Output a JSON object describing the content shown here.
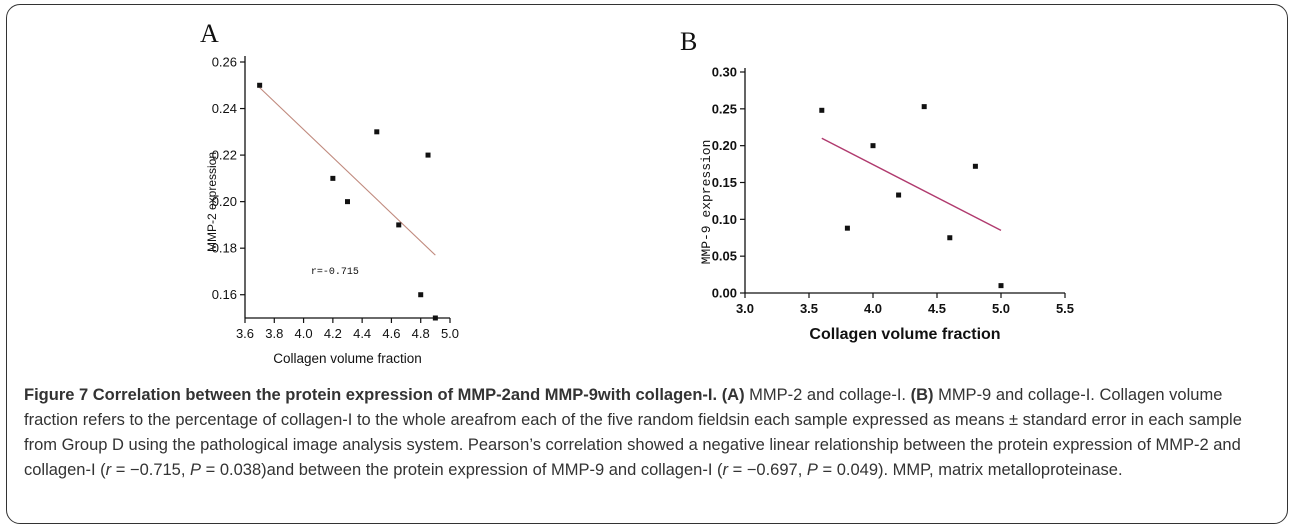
{
  "chart_data": [
    {
      "type": "scatter",
      "panel_label": "A",
      "xlabel": "Collagen volume fraction",
      "ylabel": "MMP-2 expression",
      "xlim": [
        3.6,
        5.0
      ],
      "ylim": [
        0.15,
        0.26
      ],
      "xticks": [
        "3.6",
        "3.8",
        "4.0",
        "4.2",
        "4.4",
        "4.6",
        "4.8",
        "5.0"
      ],
      "yticks": [
        "0.16",
        "0.18",
        "0.20",
        "0.22",
        "0.24",
        "0.26"
      ],
      "points": [
        {
          "x": 3.7,
          "y": 0.25
        },
        {
          "x": 4.2,
          "y": 0.21
        },
        {
          "x": 4.3,
          "y": 0.2
        },
        {
          "x": 4.5,
          "y": 0.23
        },
        {
          "x": 4.65,
          "y": 0.19
        },
        {
          "x": 4.8,
          "y": 0.16
        },
        {
          "x": 4.85,
          "y": 0.22
        },
        {
          "x": 4.9,
          "y": 0.15
        }
      ],
      "fit_line": {
        "x": [
          3.7,
          4.9
        ],
        "y": [
          0.249,
          0.177
        ],
        "color": "#c08a7e"
      },
      "annotation": "r=-0.715",
      "grid": false
    },
    {
      "type": "scatter",
      "panel_label": "B",
      "xlabel": "Collagen volume fraction",
      "ylabel": "MMP-9 expression",
      "xlim": [
        3.0,
        5.5
      ],
      "ylim": [
        0.0,
        0.3
      ],
      "xticks": [
        "3.0",
        "3.5",
        "4.0",
        "4.5",
        "5.0",
        "5.5"
      ],
      "yticks": [
        "0.00",
        "0.05",
        "0.10",
        "0.15",
        "0.20",
        "0.25",
        "0.30"
      ],
      "points": [
        {
          "x": 3.6,
          "y": 0.248
        },
        {
          "x": 3.8,
          "y": 0.088
        },
        {
          "x": 4.0,
          "y": 0.2
        },
        {
          "x": 4.2,
          "y": 0.133
        },
        {
          "x": 4.4,
          "y": 0.253
        },
        {
          "x": 4.6,
          "y": 0.075
        },
        {
          "x": 4.8,
          "y": 0.172
        },
        {
          "x": 5.0,
          "y": 0.01
        }
      ],
      "fit_line": {
        "x": [
          3.6,
          5.0
        ],
        "y": [
          0.21,
          0.085
        ],
        "color": "#b03a6e"
      },
      "grid": false
    }
  ],
  "caption": {
    "title": "Figure 7 Correlation between the protein expression of MMP-2and MMP-9with collagen-I.",
    "label_a": "(A)",
    "text_a": " MMP-2 and collage-I. ",
    "label_b": "(B)",
    "text_b": " MMP-9 and collage-I. Collagen volume fraction refers to the percentage of collagen-I to the whole areafrom each of the five random fieldsin each sample expressed as means ± standard error in each sample from Group D using the pathological image analysis system. Pearson’s correlation showed a negative linear relationship between the protein expression of MMP-2 and collagen-I (",
    "r1_sym": "r",
    "r1_val": " = −0.715, ",
    "p1_sym": "P",
    "p1_val": " = 0.038)and between the protein expression of MMP-9 and collagen-I (",
    "r2_sym": "r",
    "r2_val": " = −0.697, ",
    "p2_sym": "P",
    "p2_val": " = 0.049). MMP, matrix metalloproteinase."
  }
}
